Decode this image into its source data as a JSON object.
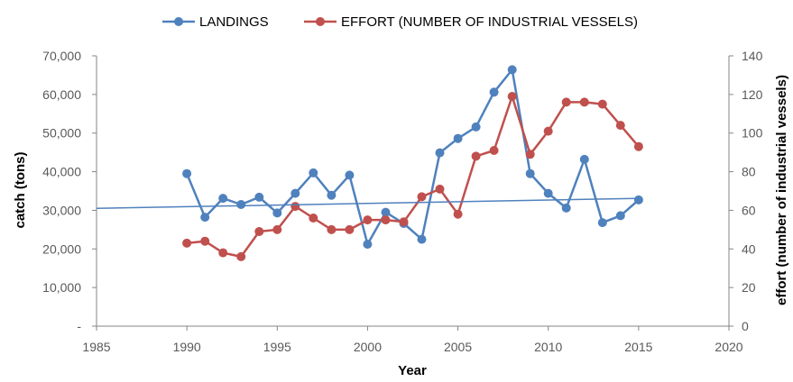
{
  "chart_data": {
    "type": "line",
    "title": "",
    "xlabel": "Year",
    "ylabel": "catch (tons)",
    "y2label": "effort (number of industrial vessels)",
    "xlim": [
      1985,
      2020
    ],
    "ylim": [
      0,
      70000
    ],
    "y2lim": [
      0,
      140
    ],
    "x_ticks": [
      "1985",
      "1990",
      "1995",
      "2000",
      "2005",
      "2010",
      "2015",
      "2020"
    ],
    "y_ticks": [
      "-",
      "10,000",
      "20,000",
      "30,000",
      "40,000",
      "50,000",
      "60,000",
      "70,000"
    ],
    "y2_ticks": [
      "0",
      "20",
      "40",
      "60",
      "80",
      "100",
      "120",
      "140"
    ],
    "legend_position": "top",
    "series": [
      {
        "name": "LANDINGS",
        "axis": "left",
        "color": "#4F81BD",
        "x": [
          1990,
          1991,
          1992,
          1993,
          1994,
          1995,
          1996,
          1997,
          1998,
          1999,
          2000,
          2001,
          2002,
          2003,
          2004,
          2005,
          2006,
          2007,
          2008,
          2009,
          2010,
          2011,
          2012,
          2013,
          2014,
          2015
        ],
        "values": [
          39500,
          28200,
          33100,
          31500,
          33400,
          29300,
          34400,
          39700,
          33900,
          39100,
          21200,
          29500,
          26600,
          22500,
          44900,
          48600,
          51600,
          60600,
          66400,
          39500,
          34400,
          30600,
          43200,
          26800,
          28600,
          32700
        ]
      },
      {
        "name": "EFFORT (NUMBER OF INDUSTRIAL VESSELS)",
        "axis": "right",
        "color": "#C0504D",
        "x": [
          1990,
          1991,
          1992,
          1993,
          1994,
          1995,
          1996,
          1997,
          1998,
          1999,
          2000,
          2001,
          2002,
          2003,
          2004,
          2005,
          2006,
          2007,
          2008,
          2009,
          2010,
          2011,
          2012,
          2013,
          2014,
          2015
        ],
        "values": [
          43,
          44,
          38,
          36,
          49,
          50,
          62,
          56,
          50,
          50,
          55,
          55,
          54,
          67,
          71,
          58,
          88,
          91,
          119,
          89,
          101,
          116,
          116,
          115,
          104,
          93
        ]
      },
      {
        "name": "",
        "type": "trendline",
        "axis": "left",
        "color": "#4F81BD",
        "x": [
          1985,
          2015.2
        ],
        "values": [
          30500,
          33100
        ]
      }
    ]
  }
}
